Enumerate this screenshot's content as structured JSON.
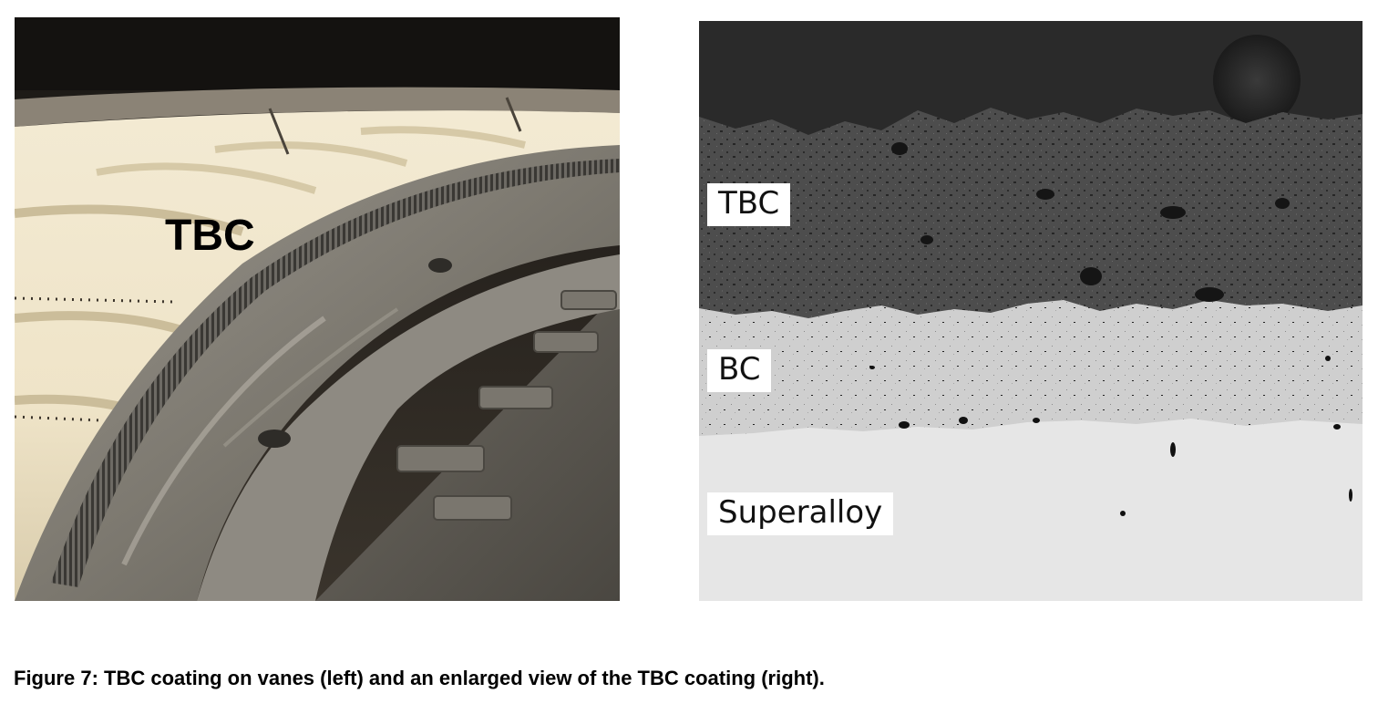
{
  "left_image": {
    "label": "TBC"
  },
  "right_image": {
    "labels": {
      "tbc": "TBC",
      "bc": "BC",
      "superalloy": "Superalloy"
    }
  },
  "caption": "Figure 7: TBC coating on vanes (left) and an enlarged view of the TBC coating (right)."
}
